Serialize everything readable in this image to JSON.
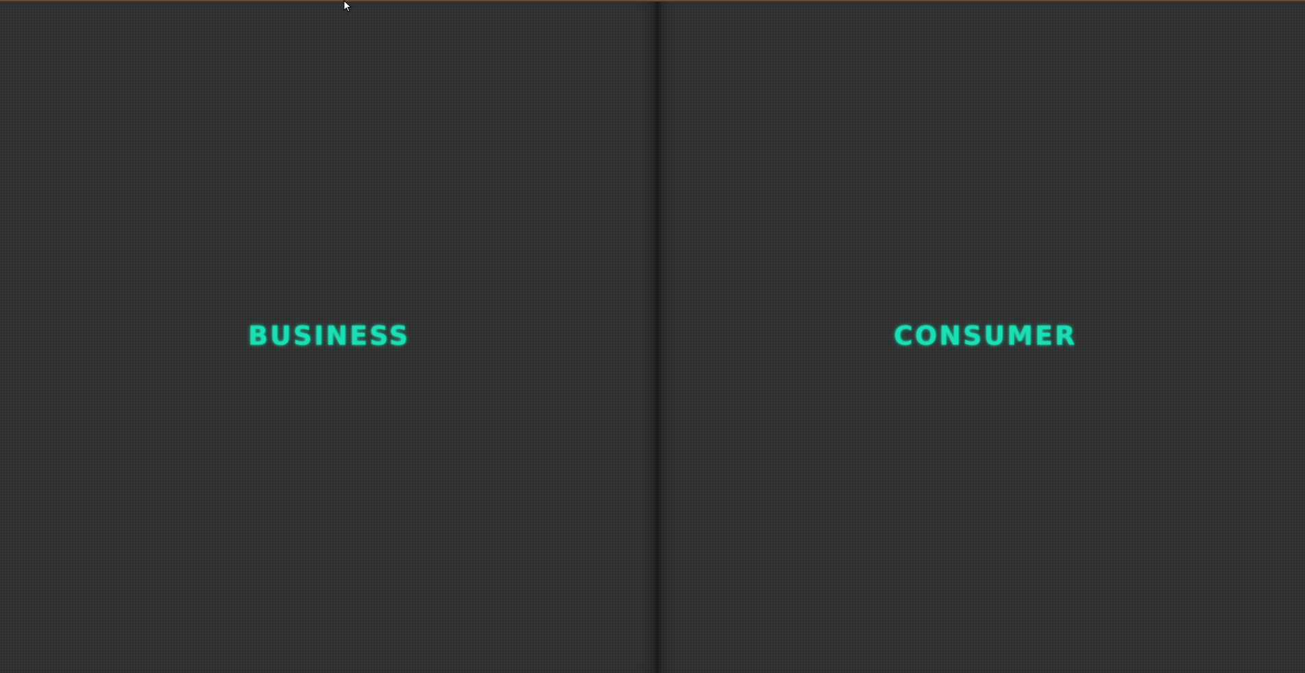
{
  "panels": {
    "business": {
      "label": "BUSINESS"
    },
    "consumer": {
      "label": "CONSUMER"
    }
  },
  "colors": {
    "background": "#323232",
    "accent": "#19e0b4",
    "top_strip": "#6b4a33"
  },
  "icons": {
    "cursor": "mouse-pointer-icon"
  }
}
